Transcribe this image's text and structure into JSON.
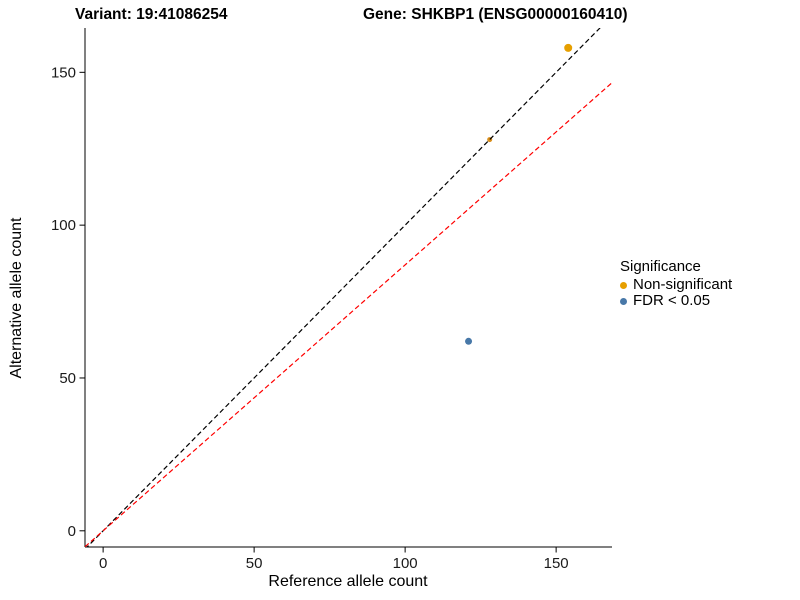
{
  "titles": {
    "variant": "Variant: 19:41086254",
    "gene": "Gene: SHKBP1 (ENSG00000160410)"
  },
  "axes": {
    "x_label": "Reference allele count",
    "y_label": "Alternative allele count"
  },
  "legend": {
    "title": "Significance",
    "items": [
      {
        "label": "Non-significant",
        "color": "#E69F00"
      },
      {
        "label": "FDR < 0.05",
        "color": "#4878A8"
      }
    ]
  },
  "chart_data": {
    "type": "scatter",
    "title": "Variant: 19:41086254 | Gene: SHKBP1 (ENSG00000160410)",
    "xlabel": "Reference allele count",
    "ylabel": "Alternative allele count",
    "xlim": [
      -6,
      168.5
    ],
    "ylim": [
      -5.3,
      164.5
    ],
    "x_ticks": [
      0,
      50,
      100,
      150
    ],
    "y_ticks": [
      0,
      50,
      100,
      150
    ],
    "grid": false,
    "legend_position": "right",
    "points": [
      {
        "x": 154,
        "y": 158,
        "series": "Non-significant",
        "color": "#E69F00",
        "r": 4
      },
      {
        "x": 128,
        "y": 128,
        "series": "Non-significant",
        "color": "#D98E1A",
        "r": 2.5
      },
      {
        "x": 121,
        "y": 62,
        "series": "FDR < 0.05",
        "color": "#4878A8",
        "r": 3.5
      }
    ],
    "lines": [
      {
        "name": "identity-line",
        "slope": 1,
        "intercept": 0,
        "color": "#000000",
        "dash": "5,3"
      },
      {
        "name": "expected-ratio-line",
        "slope": 0.87,
        "intercept": 0,
        "color": "#FF0000",
        "dash": "5,3"
      }
    ],
    "axis_color": "#000000"
  }
}
